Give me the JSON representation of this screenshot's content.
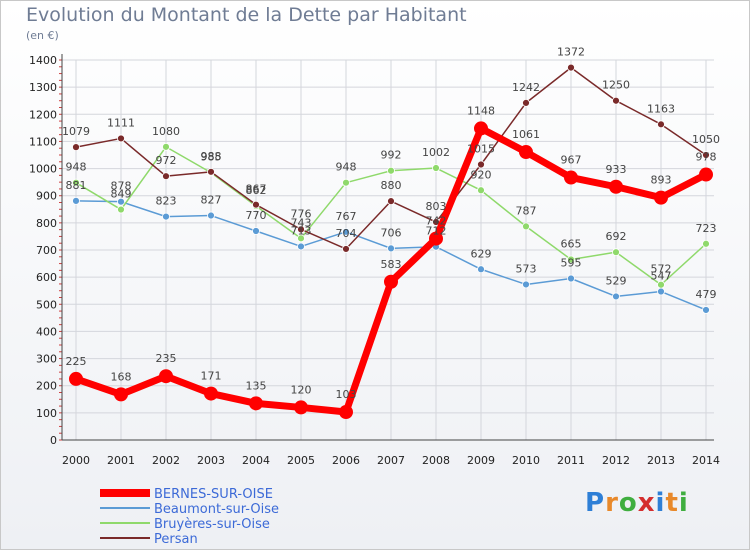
{
  "header": {
    "title": "Evolution du Montant de la Dette par Habitant",
    "unit": "(en €)"
  },
  "logo": {
    "text": "Proxiti"
  },
  "colors": {
    "BERNES-SUR-OISE": "#ff0000",
    "Beaumont-sur-Oise": "#5b9bd5",
    "Bruyères-sur-Oise": "#8fd96b",
    "Persan": "#7a2a2a",
    "grid": "#d4d6dc",
    "axis": "#444444"
  },
  "chart_data": {
    "type": "line",
    "title": "Evolution du Montant de la Dette par Habitant",
    "ylabel": "(en €)",
    "xlabel": "",
    "x": [
      "2000",
      "2001",
      "2002",
      "2003",
      "2004",
      "2005",
      "2006",
      "2007",
      "2008",
      "2009",
      "2010",
      "2011",
      "2012",
      "2013",
      "2014"
    ],
    "ylim": [
      0,
      1400
    ],
    "yticks": [
      0,
      100,
      200,
      300,
      400,
      500,
      600,
      700,
      800,
      900,
      1000,
      1100,
      1200,
      1300,
      1400
    ],
    "grid": true,
    "legend_position": "bottom-left",
    "series": [
      {
        "name": "BERNES-SUR-OISE",
        "values": [
          225,
          168,
          235,
          171,
          135,
          120,
          103,
          583,
          742,
          1148,
          1061,
          967,
          933,
          893,
          978
        ],
        "labels": [
          "225",
          "168",
          "235",
          "171",
          "135",
          "120",
          "103",
          "583",
          "742",
          "1148",
          "1061",
          "967",
          "933",
          "893",
          "978"
        ]
      },
      {
        "name": "Beaumont-sur-Oise",
        "values": [
          881,
          878,
          823,
          827,
          770,
          713,
          767,
          706,
          712,
          629,
          573,
          595,
          529,
          547,
          479
        ],
        "labels": [
          "881",
          "878",
          "823",
          "827",
          "770",
          "713",
          "767",
          "706",
          "712",
          "629",
          "573",
          "595",
          "529",
          "547",
          "479"
        ]
      },
      {
        "name": "Bruyères-sur-Oise",
        "values": [
          948,
          849,
          1080,
          985,
          862,
          743,
          948,
          992,
          1002,
          920,
          787,
          665,
          692,
          572,
          723
        ],
        "labels": [
          "948",
          "849",
          "1080",
          "985",
          "862",
          "743",
          "948",
          "992",
          "1002",
          "920",
          "787",
          "665",
          "692",
          "572",
          "723"
        ]
      },
      {
        "name": "Persan",
        "values": [
          1079,
          1111,
          972,
          988,
          867,
          776,
          704,
          880,
          803,
          1015,
          1242,
          1372,
          1250,
          1163,
          1050
        ],
        "labels": [
          "1079",
          "1111",
          "972",
          "988",
          "867",
          "776",
          "704",
          "880",
          "803",
          "1015",
          "1242",
          "1372",
          "1250",
          "1163",
          "1050"
        ]
      }
    ]
  }
}
